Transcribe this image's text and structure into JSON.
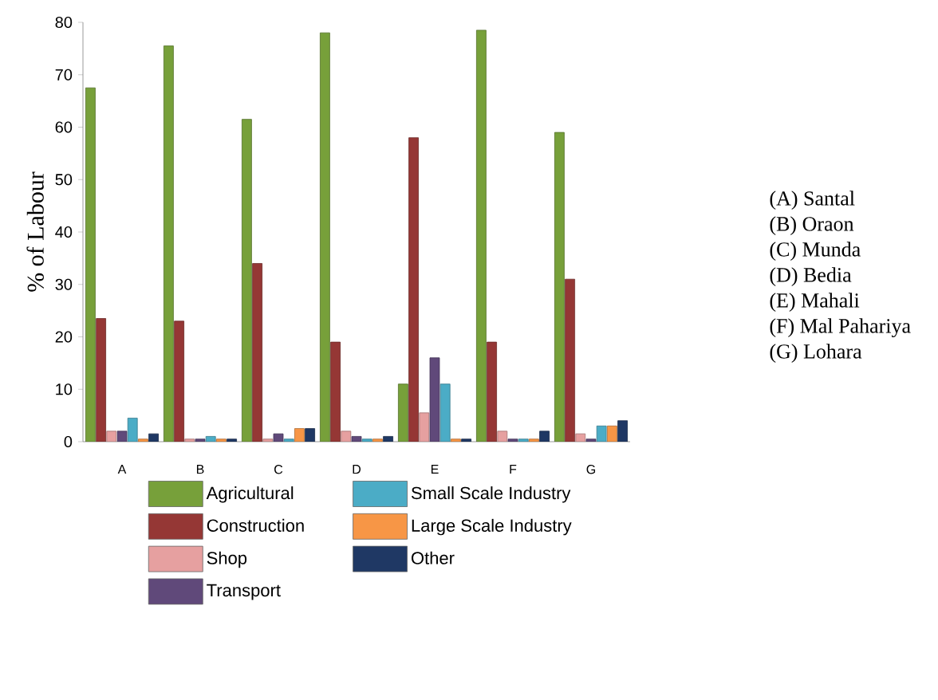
{
  "chart_data": {
    "type": "bar",
    "ylabel": "% of Labour",
    "categories": [
      "A",
      "B",
      "C",
      "D",
      "E",
      "F",
      "G"
    ],
    "series": [
      {
        "name": "Agricultural",
        "color": "#77a03a",
        "values": [
          67.5,
          75.5,
          61.5,
          78,
          11,
          78.5,
          59
        ]
      },
      {
        "name": "Construction",
        "color": "#953735",
        "values": [
          23.5,
          23,
          34,
          19,
          58,
          19,
          31
        ]
      },
      {
        "name": "Shop",
        "color": "#e6a0a0",
        "values": [
          2,
          0.5,
          0.5,
          2,
          5.5,
          2,
          1.5
        ]
      },
      {
        "name": "Transport",
        "color": "#60497a",
        "values": [
          2,
          0.5,
          1.5,
          1,
          16,
          0.5,
          0.5
        ]
      },
      {
        "name": "Small Scale Industry",
        "color": "#4bacc6",
        "values": [
          4.5,
          1,
          0.5,
          0.5,
          11,
          0.5,
          3
        ]
      },
      {
        "name": "Large Scale Industry",
        "color": "#f79646",
        "values": [
          0.5,
          0.5,
          2.5,
          0.5,
          0.5,
          0.5,
          3
        ]
      },
      {
        "name": "Other",
        "color": "#1f3864",
        "values": [
          1.5,
          0.5,
          2.5,
          1,
          0.5,
          2,
          4
        ]
      }
    ],
    "ylim": [
      0,
      80
    ],
    "yticks": [
      0,
      10,
      20,
      30,
      40,
      50,
      60,
      70,
      80
    ],
    "legend": "bottom",
    "grid": false,
    "annotations": [
      "(A) Santal",
      "(B) Oraon",
      "(C) Munda",
      "(D) Bedia",
      "(E) Mahali",
      "(F) Mal Pahariya",
      "(G) Lohara"
    ]
  }
}
